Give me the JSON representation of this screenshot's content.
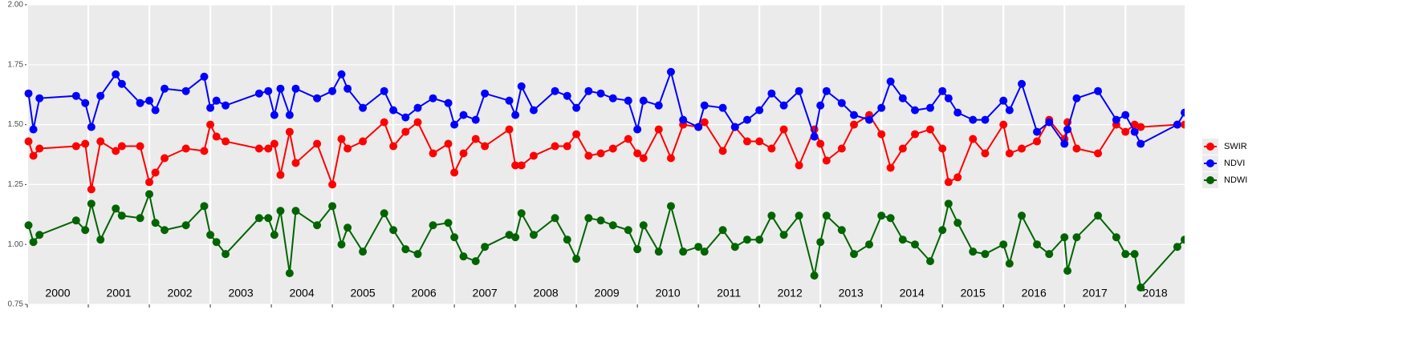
{
  "chart_data": {
    "type": "line",
    "x": [
      2000.02,
      2000.1,
      2000.2,
      2000.8,
      2000.95,
      2001.05,
      2001.2,
      2001.45,
      2001.55,
      2001.85,
      2002.0,
      2002.1,
      2002.25,
      2002.6,
      2002.9,
      2003.0,
      2003.1,
      2003.25,
      2003.8,
      2003.95,
      2004.05,
      2004.15,
      2004.3,
      2004.4,
      2004.75,
      2005.0,
      2005.15,
      2005.25,
      2005.5,
      2005.85,
      2006.0,
      2006.2,
      2006.4,
      2006.65,
      2006.9,
      2007.0,
      2007.15,
      2007.35,
      2007.5,
      2007.9,
      2008.0,
      2008.1,
      2008.3,
      2008.65,
      2008.85,
      2009.0,
      2009.2,
      2009.4,
      2009.6,
      2009.85,
      2010.0,
      2010.1,
      2010.35,
      2010.55,
      2010.75,
      2011.0,
      2011.1,
      2011.4,
      2011.6,
      2011.8,
      2012.0,
      2012.2,
      2012.4,
      2012.65,
      2012.9,
      2013.0,
      2013.1,
      2013.35,
      2013.55,
      2013.8,
      2014.0,
      2014.15,
      2014.35,
      2014.55,
      2014.8,
      2015.0,
      2015.1,
      2015.25,
      2015.5,
      2015.7,
      2016.0,
      2016.1,
      2016.3,
      2016.55,
      2016.75,
      2017.0,
      2017.05,
      2017.2,
      2017.55,
      2017.85,
      2018.0,
      2018.15,
      2018.25,
      2018.85,
      2018.97
    ],
    "series": [
      {
        "name": "SWIR",
        "color": "#ff0000",
        "values": [
          1.43,
          1.37,
          1.4,
          1.41,
          1.42,
          1.23,
          1.43,
          1.39,
          1.41,
          1.41,
          1.26,
          1.3,
          1.36,
          1.4,
          1.39,
          1.5,
          1.45,
          1.43,
          1.4,
          1.4,
          1.42,
          1.29,
          1.47,
          1.34,
          1.42,
          1.25,
          1.44,
          1.4,
          1.43,
          1.51,
          1.41,
          1.47,
          1.51,
          1.38,
          1.42,
          1.3,
          1.38,
          1.44,
          1.41,
          1.48,
          1.33,
          1.33,
          1.37,
          1.41,
          1.41,
          1.46,
          1.37,
          1.38,
          1.4,
          1.44,
          1.38,
          1.36,
          1.48,
          1.36,
          1.5,
          1.49,
          1.51,
          1.39,
          1.49,
          1.43,
          1.43,
          1.4,
          1.48,
          1.33,
          1.48,
          1.42,
          1.35,
          1.4,
          1.5,
          1.54,
          1.46,
          1.32,
          1.4,
          1.46,
          1.48,
          1.4,
          1.26,
          1.28,
          1.44,
          1.38,
          1.5,
          1.38,
          1.4,
          1.43,
          1.52,
          1.44,
          1.51,
          1.4,
          1.38,
          1.5,
          1.47,
          1.5,
          1.49,
          1.5,
          1.5
        ]
      },
      {
        "name": "NDVI",
        "color": "#0000ff",
        "values": [
          1.63,
          1.48,
          1.61,
          1.62,
          1.59,
          1.49,
          1.62,
          1.71,
          1.67,
          1.59,
          1.6,
          1.56,
          1.65,
          1.64,
          1.7,
          1.57,
          1.6,
          1.58,
          1.63,
          1.64,
          1.54,
          1.65,
          1.54,
          1.65,
          1.61,
          1.64,
          1.71,
          1.65,
          1.57,
          1.64,
          1.56,
          1.53,
          1.57,
          1.61,
          1.59,
          1.5,
          1.54,
          1.52,
          1.63,
          1.6,
          1.54,
          1.66,
          1.56,
          1.64,
          1.62,
          1.57,
          1.64,
          1.63,
          1.61,
          1.6,
          1.48,
          1.6,
          1.58,
          1.72,
          1.52,
          1.49,
          1.58,
          1.57,
          1.49,
          1.52,
          1.56,
          1.63,
          1.58,
          1.64,
          1.45,
          1.58,
          1.64,
          1.59,
          1.54,
          1.52,
          1.57,
          1.68,
          1.61,
          1.56,
          1.57,
          1.64,
          1.61,
          1.55,
          1.52,
          1.52,
          1.6,
          1.56,
          1.67,
          1.47,
          1.51,
          1.42,
          1.48,
          1.61,
          1.64,
          1.52,
          1.54,
          1.47,
          1.42,
          1.5,
          1.55
        ]
      },
      {
        "name": "NDWI",
        "color": "#006400",
        "values": [
          1.08,
          1.01,
          1.04,
          1.1,
          1.06,
          1.17,
          1.02,
          1.15,
          1.12,
          1.11,
          1.21,
          1.09,
          1.06,
          1.08,
          1.16,
          1.04,
          1.01,
          0.96,
          1.11,
          1.11,
          1.04,
          1.14,
          0.88,
          1.14,
          1.08,
          1.16,
          1.0,
          1.07,
          0.97,
          1.13,
          1.06,
          0.98,
          0.96,
          1.08,
          1.09,
          1.03,
          0.95,
          0.93,
          0.99,
          1.04,
          1.03,
          1.13,
          1.04,
          1.11,
          1.02,
          0.94,
          1.11,
          1.1,
          1.08,
          1.06,
          0.98,
          1.08,
          0.97,
          1.16,
          0.97,
          0.99,
          0.97,
          1.06,
          0.99,
          1.02,
          1.02,
          1.12,
          1.04,
          1.12,
          0.87,
          1.01,
          1.12,
          1.06,
          0.96,
          1.0,
          1.12,
          1.11,
          1.02,
          1.0,
          0.93,
          1.06,
          1.17,
          1.09,
          0.97,
          0.96,
          1.0,
          0.92,
          1.12,
          1.0,
          0.96,
          1.03,
          0.89,
          1.03,
          1.12,
          1.03,
          0.96,
          0.96,
          0.82,
          0.99,
          1.02
        ]
      }
    ],
    "xlim": [
      2000,
      2018.97
    ],
    "xticks": [
      2000,
      2001,
      2002,
      2003,
      2004,
      2005,
      2006,
      2007,
      2008,
      2009,
      2010,
      2011,
      2012,
      2013,
      2014,
      2015,
      2016,
      2017,
      2018
    ],
    "ylim": [
      0.75,
      2.0
    ],
    "yticks": [
      0.75,
      {
        "value": 1.0,
        "label": "1.00"
      },
      1.25,
      {
        "value": 1.5,
        "label": "1.50"
      },
      1.75,
      {
        "value": 2.0,
        "label": "2.00"
      }
    ],
    "grid": true,
    "legend": "right"
  }
}
